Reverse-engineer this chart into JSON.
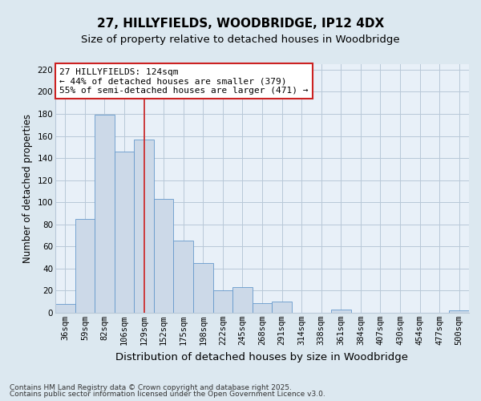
{
  "title": "27, HILLYFIELDS, WOODBRIDGE, IP12 4DX",
  "subtitle": "Size of property relative to detached houses in Woodbridge",
  "xlabel": "Distribution of detached houses by size in Woodbridge",
  "ylabel": "Number of detached properties",
  "categories": [
    "36sqm",
    "59sqm",
    "82sqm",
    "106sqm",
    "129sqm",
    "152sqm",
    "175sqm",
    "198sqm",
    "222sqm",
    "245sqm",
    "268sqm",
    "291sqm",
    "314sqm",
    "338sqm",
    "361sqm",
    "384sqm",
    "407sqm",
    "430sqm",
    "454sqm",
    "477sqm",
    "500sqm"
  ],
  "values": [
    8,
    85,
    179,
    146,
    157,
    103,
    65,
    45,
    20,
    23,
    9,
    10,
    0,
    0,
    3,
    0,
    0,
    0,
    0,
    0,
    2
  ],
  "bar_fill_color": "#ccd9e8",
  "bar_edge_color": "#6699cc",
  "annotation_text": "27 HILLYFIELDS: 124sqm\n← 44% of detached houses are smaller (379)\n55% of semi-detached houses are larger (471) →",
  "vline_index": 4,
  "ylim": [
    0,
    225
  ],
  "yticks": [
    0,
    20,
    40,
    60,
    80,
    100,
    120,
    140,
    160,
    180,
    200,
    220
  ],
  "footnote1": "Contains HM Land Registry data © Crown copyright and database right 2025.",
  "footnote2": "Contains public sector information licensed under the Open Government Licence v3.0.",
  "background_color": "#dce8f0",
  "plot_background": "#e8f0f8",
  "grid_color": "#b8c8d8",
  "title_fontsize": 11,
  "subtitle_fontsize": 9.5,
  "xlabel_fontsize": 9.5,
  "ylabel_fontsize": 8.5,
  "tick_fontsize": 7.5,
  "annotation_fontsize": 8,
  "footnote_fontsize": 6.5
}
